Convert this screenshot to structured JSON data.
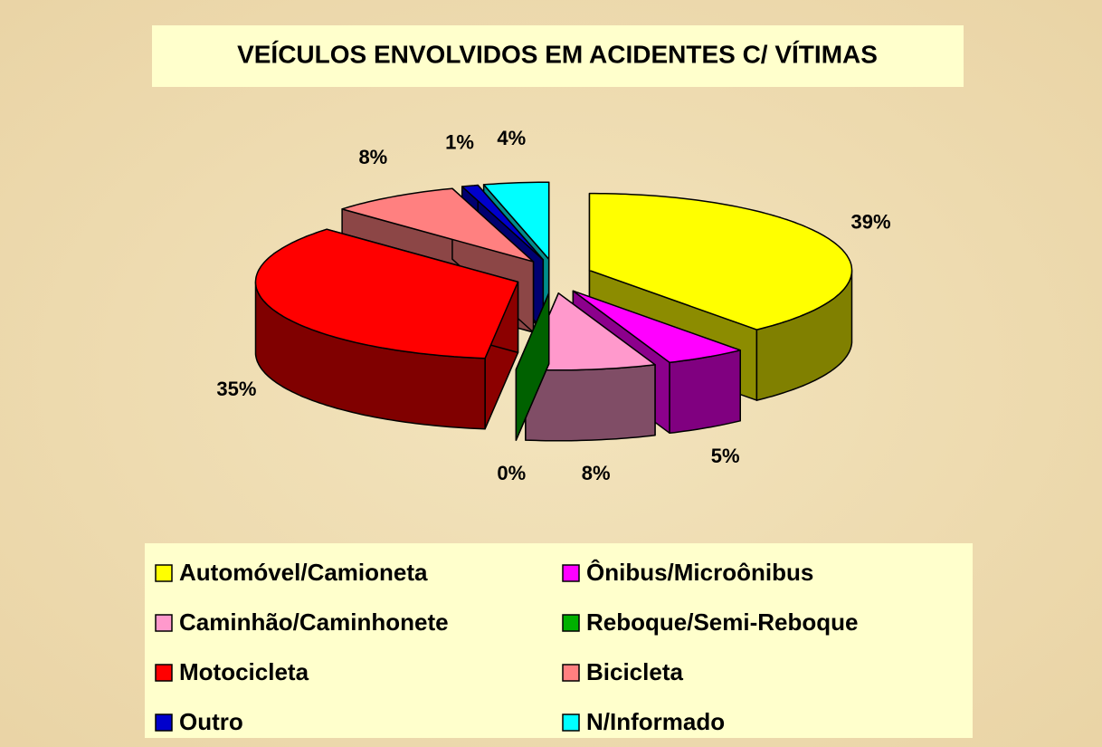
{
  "chart_data": {
    "type": "pie",
    "title": "VEÍCULOS ENVOLVIDOS EM ACIDENTES C/ VÍTIMAS",
    "categories": [
      "Automóvel/Camioneta",
      "Ônibus/Microônibus",
      "Caminhão/Caminhonete",
      "Reboque/Semi-Reboque",
      "Motocicleta",
      "Bicicleta",
      "Outro",
      "N/Informado"
    ],
    "values": [
      39,
      5,
      8,
      0,
      35,
      8,
      1,
      4
    ],
    "value_labels": [
      "39%",
      "5%",
      "8%",
      "0%",
      "35%",
      "8%",
      "1%",
      "4%"
    ],
    "colors": [
      "#ffff00",
      "#ff00ff",
      "#ff99cc",
      "#00b000",
      "#ff0000",
      "#ff8080",
      "#0000cc",
      "#00ffff"
    ],
    "legend": "bottom"
  }
}
